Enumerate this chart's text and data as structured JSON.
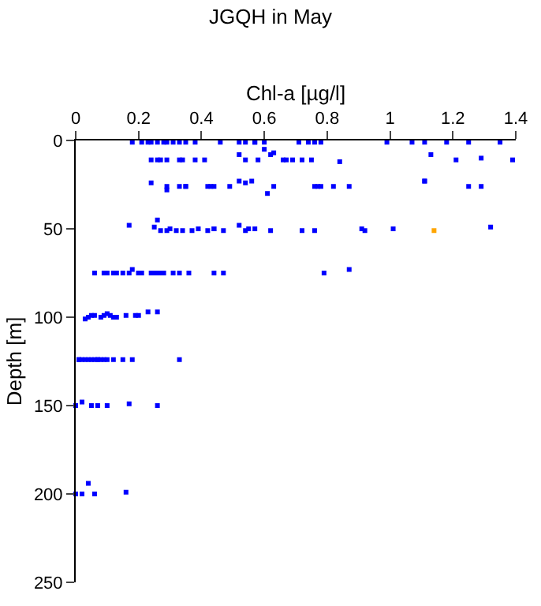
{
  "chart_data": {
    "type": "scatter",
    "title": "JGQH in May",
    "xlabel": "Chl-a [µg/l]",
    "ylabel": "Depth [m]",
    "xlim": [
      0,
      1.4
    ],
    "xticks": [
      0,
      0.2,
      0.4,
      0.6,
      0.8,
      1,
      1.2,
      1.4
    ],
    "ylim": [
      250,
      0
    ],
    "yticks": [
      0,
      50,
      100,
      150,
      200,
      250
    ],
    "marker": "square",
    "series": [
      {
        "color": "#0000ff",
        "x": [
          0.18,
          0.21,
          0.23,
          0.24,
          0.26,
          0.28,
          0.29,
          0.31,
          0.33,
          0.35,
          0.38,
          0.46,
          0.52,
          0.54,
          0.57,
          0.57,
          0.6,
          0.71,
          0.74,
          0.76,
          0.78,
          0.99,
          1.07,
          1.11,
          1.18,
          1.25,
          1.35,
          0.6,
          0.62,
          0.24,
          0.26,
          0.27,
          0.29,
          0.33,
          0.34,
          0.38,
          0.41,
          0.52,
          0.54,
          0.58,
          0.63,
          0.66,
          0.67,
          0.69,
          0.72,
          0.75,
          0.84,
          1.13,
          1.21,
          1.29,
          1.39,
          0.24,
          0.29,
          0.29,
          0.33,
          0.35,
          0.35,
          0.42,
          0.43,
          0.44,
          0.49,
          0.52,
          0.54,
          0.56,
          0.61,
          0.63,
          0.76,
          0.77,
          0.78,
          0.82,
          0.87,
          1.11,
          1.11,
          1.25,
          1.29,
          0.17,
          0.25,
          0.26,
          0.27,
          0.29,
          0.3,
          0.32,
          0.34,
          0.37,
          0.39,
          0.42,
          0.44,
          0.44,
          0.47,
          0.52,
          0.54,
          0.55,
          0.57,
          0.62,
          0.72,
          0.76,
          0.91,
          0.92,
          1.01,
          1.32,
          0.06,
          0.09,
          0.1,
          0.12,
          0.13,
          0.15,
          0.17,
          0.18,
          0.2,
          0.2,
          0.21,
          0.24,
          0.25,
          0.26,
          0.27,
          0.28,
          0.31,
          0.33,
          0.36,
          0.44,
          0.47,
          0.79,
          0.87,
          0.03,
          0.04,
          0.05,
          0.06,
          0.08,
          0.09,
          0.1,
          0.11,
          0.12,
          0.13,
          0.16,
          0.19,
          0.2,
          0.23,
          0.26,
          0.01,
          0.01,
          0.02,
          0.03,
          0.04,
          0.05,
          0.06,
          0.07,
          0.07,
          0.08,
          0.09,
          0.1,
          0.12,
          0.15,
          0.18,
          0.33,
          0.0,
          0.02,
          0.05,
          0.07,
          0.1,
          0.17,
          0.26,
          0.0,
          0.02,
          0.04,
          0.06,
          0.16
        ],
        "values": [
          1,
          1,
          1,
          1,
          1,
          1,
          1,
          1,
          1,
          1,
          1,
          1,
          1,
          1,
          1,
          1,
          1,
          1,
          1,
          1,
          1,
          1,
          1,
          1,
          1,
          1,
          1,
          5,
          8,
          11,
          11,
          11,
          11,
          11,
          11,
          11,
          11,
          8,
          11,
          11,
          7,
          11,
          11,
          11,
          11,
          11,
          12,
          8,
          11,
          10,
          11,
          24,
          26,
          28,
          26,
          26,
          26,
          26,
          26,
          26,
          26,
          23,
          24,
          23,
          30,
          26,
          26,
          26,
          26,
          26,
          26,
          23,
          23,
          26,
          26,
          48,
          49,
          45,
          51,
          51,
          50,
          51,
          51,
          51,
          50,
          51,
          50,
          50,
          51,
          48,
          51,
          50,
          50,
          51,
          51,
          51,
          50,
          51,
          50,
          49,
          75,
          75,
          75,
          75,
          75,
          75,
          75,
          73,
          75,
          75,
          75,
          75,
          75,
          75,
          75,
          75,
          75,
          75,
          75,
          75,
          75,
          75,
          73,
          101,
          100,
          99,
          99,
          100,
          99,
          98,
          99,
          100,
          100,
          99,
          99,
          99,
          97,
          97,
          124,
          124,
          124,
          124,
          124,
          124,
          124,
          124,
          124,
          124,
          124,
          124,
          124,
          124,
          124,
          124,
          150,
          148,
          150,
          150,
          150,
          149,
          150,
          200,
          200,
          194,
          200,
          199
        ]
      },
      {
        "color": "#ffa500",
        "x": [
          1.14
        ],
        "values": [
          51
        ]
      }
    ]
  }
}
